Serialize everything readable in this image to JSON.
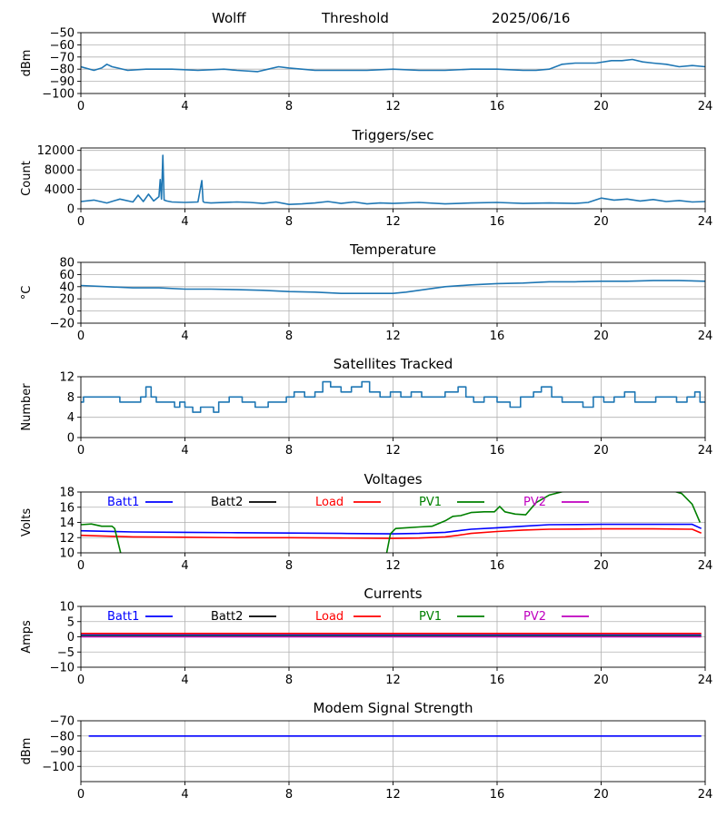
{
  "header": {
    "station": "Wolff",
    "mode": "Threshold",
    "date": "2025/06/16"
  },
  "colors": {
    "series_default": "#1f77b4",
    "batt1": "#0000ff",
    "batt2": "#000000",
    "load": "#ff0000",
    "pv1": "#008000",
    "pv2": "#bf00bf",
    "grid": "#b0b0b0"
  },
  "chart_data": [
    {
      "type": "line",
      "title": "",
      "ylabel": "dBm",
      "xlim": [
        0,
        24
      ],
      "xticks": [
        0,
        4,
        8,
        12,
        16,
        20,
        24
      ],
      "ylim": [
        -100,
        -50
      ],
      "yticks": [
        -100,
        -90,
        -80,
        -70,
        -60,
        -50
      ],
      "grid": true,
      "series": [
        {
          "color": "#1f77b4",
          "x": [
            0,
            0.5,
            0.8,
            1.0,
            1.2,
            1.8,
            2.5,
            3.5,
            4.5,
            5.5,
            6.0,
            6.8,
            7.2,
            7.6,
            8.0,
            8.5,
            9.0,
            10.0,
            11.0,
            12.0,
            13.0,
            14.0,
            15.0,
            16.0,
            17.0,
            17.5,
            18.0,
            18.5,
            19.0,
            19.8,
            20.4,
            20.8,
            21.2,
            21.6,
            22.0,
            22.5,
            23.0,
            23.5,
            24.0
          ],
          "y": [
            -78,
            -81,
            -79,
            -76,
            -78,
            -81,
            -80,
            -80,
            -81,
            -80,
            -81,
            -82,
            -80,
            -78,
            -79,
            -80,
            -81,
            -81,
            -81,
            -80,
            -81,
            -81,
            -80,
            -80,
            -81,
            -81,
            -80,
            -76,
            -75,
            -75,
            -73,
            -73,
            -72,
            -74,
            -75,
            -76,
            -78,
            -77,
            -78
          ]
        }
      ]
    },
    {
      "type": "line",
      "title": "Triggers/sec",
      "ylabel": "Count",
      "xlim": [
        0,
        24
      ],
      "xticks": [
        0,
        4,
        8,
        12,
        16,
        20,
        24
      ],
      "ylim": [
        0,
        12500
      ],
      "yticks": [
        0,
        4000,
        8000,
        12000
      ],
      "grid": true,
      "series": [
        {
          "color": "#1f77b4",
          "x": [
            0,
            0.5,
            1.0,
            1.5,
            2.0,
            2.2,
            2.4,
            2.6,
            2.8,
            3.0,
            3.05,
            3.1,
            3.15,
            3.2,
            3.3,
            3.5,
            4.0,
            4.5,
            4.65,
            4.7,
            4.75,
            5.0,
            6.0,
            6.5,
            7.0,
            7.5,
            8.0,
            8.5,
            9.0,
            9.5,
            10.0,
            10.5,
            11.0,
            11.5,
            12.0,
            13.0,
            14.0,
            15.0,
            16.0,
            17.0,
            18.0,
            19.0,
            19.5,
            20.0,
            20.5,
            21.0,
            21.5,
            22.0,
            22.5,
            23.0,
            23.5,
            24.0
          ],
          "y": [
            1500,
            1800,
            1200,
            2000,
            1400,
            2800,
            1500,
            3000,
            1600,
            2500,
            6000,
            2000,
            11000,
            1800,
            1600,
            1400,
            1300,
            1400,
            5800,
            1500,
            1300,
            1200,
            1400,
            1300,
            1100,
            1400,
            900,
            1000,
            1200,
            1500,
            1100,
            1400,
            1000,
            1200,
            1100,
            1300,
            1000,
            1200,
            1300,
            1100,
            1200,
            1100,
            1300,
            2200,
            1800,
            2000,
            1600,
            1900,
            1500,
            1700,
            1400,
            1500
          ]
        }
      ]
    },
    {
      "type": "line",
      "title": "Temperature",
      "ylabel": "°C",
      "xlim": [
        0,
        24
      ],
      "xticks": [
        0,
        4,
        8,
        12,
        16,
        20,
        24
      ],
      "ylim": [
        -20,
        80
      ],
      "yticks": [
        -20,
        0,
        20,
        40,
        60,
        80
      ],
      "grid": true,
      "series": [
        {
          "color": "#1f77b4",
          "x": [
            0,
            1,
            2,
            3,
            4,
            5,
            6,
            7,
            8,
            9,
            10,
            11,
            12,
            12.5,
            13,
            13.5,
            14,
            15,
            16,
            17,
            18,
            19,
            20,
            21,
            22,
            23,
            24
          ],
          "y": [
            42,
            40,
            38,
            38,
            36,
            36,
            35,
            34,
            32,
            31,
            29,
            29,
            29,
            31,
            34,
            37,
            40,
            43,
            45,
            46,
            48,
            48,
            49,
            49,
            50,
            50,
            49
          ]
        }
      ]
    },
    {
      "type": "line",
      "title": "Satellites Tracked",
      "ylabel": "Number",
      "xlim": [
        0,
        24
      ],
      "xticks": [
        0,
        4,
        8,
        12,
        16,
        20,
        24
      ],
      "ylim": [
        0,
        12
      ],
      "yticks": [
        0,
        4,
        8,
        12
      ],
      "grid": true,
      "series": [
        {
          "color": "#1f77b4",
          "step": true,
          "x": [
            0,
            0.1,
            0.3,
            1.2,
            1.5,
            2.3,
            2.5,
            2.7,
            2.9,
            3.4,
            3.6,
            3.8,
            4.0,
            4.3,
            4.6,
            4.9,
            5.1,
            5.3,
            5.7,
            6.2,
            6.7,
            7.2,
            7.6,
            7.9,
            8.2,
            8.6,
            9.0,
            9.3,
            9.6,
            10.0,
            10.4,
            10.8,
            11.1,
            11.5,
            11.9,
            12.3,
            12.7,
            13.1,
            13.6,
            14.0,
            14.5,
            14.8,
            15.1,
            15.5,
            16.0,
            16.5,
            16.9,
            17.4,
            17.7,
            18.1,
            18.5,
            18.9,
            19.3,
            19.7,
            20.1,
            20.5,
            20.9,
            21.3,
            21.7,
            22.1,
            22.5,
            22.9,
            23.3,
            23.6,
            23.8,
            24.0
          ],
          "y": [
            7,
            8,
            8,
            8,
            7,
            8,
            10,
            8,
            7,
            7,
            6,
            7,
            6,
            5,
            6,
            6,
            5,
            7,
            8,
            7,
            6,
            7,
            7,
            8,
            9,
            8,
            9,
            11,
            10,
            9,
            10,
            11,
            9,
            8,
            9,
            8,
            9,
            8,
            8,
            9,
            10,
            8,
            7,
            8,
            7,
            6,
            8,
            9,
            10,
            8,
            7,
            7,
            6,
            8,
            7,
            8,
            9,
            7,
            7,
            8,
            8,
            7,
            8,
            9,
            7,
            7
          ]
        }
      ]
    },
    {
      "type": "line",
      "title": "Voltages",
      "ylabel": "Volts",
      "xlim": [
        0,
        24
      ],
      "xticks": [
        0,
        4,
        8,
        12,
        16,
        20,
        24
      ],
      "ylim": [
        10,
        18
      ],
      "yticks": [
        10,
        12,
        14,
        16,
        18
      ],
      "grid": true,
      "legend": [
        "Batt1",
        "Batt2",
        "Load",
        "PV1",
        "PV2"
      ],
      "series": [
        {
          "name": "Batt1",
          "color": "#0000ff",
          "x": [
            0,
            2,
            4,
            6,
            8,
            10,
            12,
            13,
            14,
            14.5,
            15,
            16,
            17,
            18,
            20,
            22,
            23.5,
            23.85
          ],
          "y": [
            12.9,
            12.75,
            12.7,
            12.65,
            12.6,
            12.55,
            12.5,
            12.55,
            12.7,
            12.9,
            13.1,
            13.3,
            13.5,
            13.7,
            13.75,
            13.75,
            13.75,
            13.2
          ]
        },
        {
          "name": "Batt2",
          "color": "#000000",
          "x": [],
          "y": []
        },
        {
          "name": "Load",
          "color": "#ff0000",
          "x": [
            0,
            0.5,
            2,
            4,
            6,
            8,
            10,
            12,
            13,
            14,
            14.5,
            15,
            16,
            17,
            18,
            20,
            22,
            23.5,
            23.85
          ],
          "y": [
            12.3,
            12.25,
            12.1,
            12.05,
            12.0,
            12.0,
            11.95,
            11.9,
            11.95,
            12.1,
            12.3,
            12.55,
            12.8,
            13.0,
            13.1,
            13.15,
            13.15,
            13.1,
            12.6
          ]
        },
        {
          "name": "PV1",
          "color": "#008000",
          "x": [
            0,
            0.4,
            0.8,
            1.2,
            1.3,
            1.6,
            11.7,
            11.9,
            12.1,
            12.5,
            13.0,
            13.5,
            14.0,
            14.3,
            14.6,
            15.0,
            15.5,
            15.9,
            16.1,
            16.3,
            16.7,
            17.1,
            17.5,
            18.0,
            18.7,
            22.0,
            22.7,
            23.1,
            23.5,
            23.8
          ],
          "y": [
            13.7,
            13.8,
            13.5,
            13.5,
            13.2,
            9.0,
            9.0,
            12.5,
            13.2,
            13.3,
            13.4,
            13.5,
            14.2,
            14.8,
            14.9,
            15.3,
            15.4,
            15.4,
            16.1,
            15.4,
            15.1,
            15.0,
            16.6,
            17.6,
            18.2,
            18.2,
            18.2,
            17.8,
            16.4,
            14.0
          ]
        },
        {
          "name": "PV2",
          "color": "#bf00bf",
          "x": [],
          "y": []
        }
      ]
    },
    {
      "type": "line",
      "title": "Currents",
      "ylabel": "Amps",
      "xlim": [
        0,
        24
      ],
      "xticks": [
        0,
        4,
        8,
        12,
        16,
        20,
        24
      ],
      "ylim": [
        -10,
        10
      ],
      "yticks": [
        -10,
        -5,
        0,
        5,
        10
      ],
      "grid": true,
      "legend": [
        "Batt1",
        "Batt2",
        "Load",
        "PV1",
        "PV2"
      ],
      "series": [
        {
          "name": "Batt1",
          "color": "#0000ff",
          "x": [
            0,
            23.85
          ],
          "y": [
            0.6,
            0.6
          ]
        },
        {
          "name": "Batt2",
          "color": "#000000",
          "x": [],
          "y": []
        },
        {
          "name": "Load",
          "color": "#ff0000",
          "x": [
            0,
            23.85
          ],
          "y": [
            1.1,
            1.1
          ]
        },
        {
          "name": "PV1",
          "color": "#008000",
          "x": [
            0,
            23.85
          ],
          "y": [
            0.3,
            0.3
          ]
        },
        {
          "name": "PV2",
          "color": "#bf00bf",
          "x": [
            0,
            23.85
          ],
          "y": [
            0.0,
            0.0
          ]
        }
      ]
    },
    {
      "type": "line",
      "title": "Modem Signal Strength",
      "ylabel": "dBm",
      "xlim": [
        0,
        24
      ],
      "xticks": [
        0,
        4,
        8,
        12,
        16,
        20,
        24
      ],
      "ylim": [
        -110,
        -70
      ],
      "yticks": [
        -100,
        -90,
        -80,
        -70
      ],
      "grid": true,
      "series": [
        {
          "color": "#0000ff",
          "x": [
            0.3,
            23.85
          ],
          "y": [
            -80,
            -80
          ]
        }
      ]
    }
  ]
}
